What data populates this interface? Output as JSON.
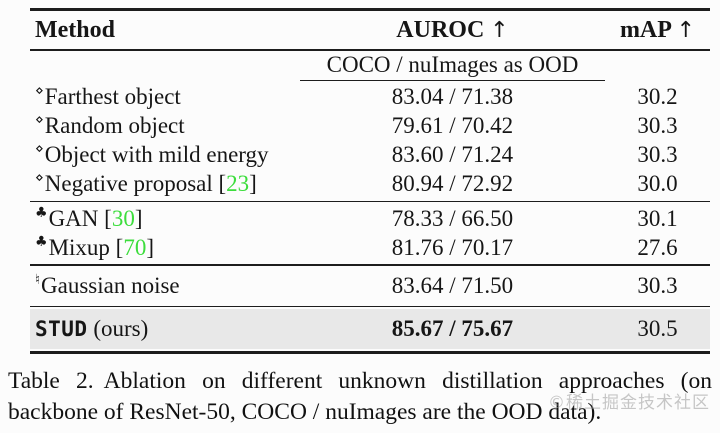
{
  "table": {
    "header": {
      "method": "Method",
      "auroc": "AUROC",
      "map": "mAP",
      "arrow": "↑"
    },
    "subheader": "COCO / nuImages as OOD",
    "rows": [
      {
        "marker": "⋄",
        "method": "Farthest object",
        "auroc": "83.04 / 71.38",
        "map": "30.2"
      },
      {
        "marker": "⋄",
        "method": "Random object",
        "auroc": "79.61 / 70.42",
        "map": "30.3"
      },
      {
        "marker": "⋄",
        "method": "Object with mild energy",
        "auroc": "83.60 / 71.24",
        "map": "30.3"
      },
      {
        "marker": "⋄",
        "method": "Negative proposal",
        "cite_open": " [",
        "citation": "23",
        "cite_close": "]",
        "auroc": "80.94 / 72.92",
        "map": "30.0"
      },
      {
        "marker": "♣",
        "method": "GAN",
        "cite_open": " [",
        "citation": "30",
        "cite_close": "]",
        "auroc": "78.33 / 66.50",
        "map": "30.1"
      },
      {
        "marker": "♣",
        "method": "Mixup",
        "cite_open": " [",
        "citation": "70",
        "cite_close": "]",
        "auroc": "81.76 / 70.17",
        "map": "27.6"
      },
      {
        "marker": "♮",
        "method": "Gaussian noise",
        "auroc": "83.64 / 71.50",
        "map": "30.3"
      }
    ],
    "stud_row": {
      "method_mono": "STUD",
      "method_rest": " (ours)",
      "auroc": "85.67 / 75.67",
      "map": "30.5"
    }
  },
  "caption": {
    "label": "Table 2.",
    "text": "Ablation on different unknown distillation approaches (on backbone of ResNet-50, COCO / nuImages are the OOD data)."
  },
  "watermark": {
    "text": "©稀土掘金技术社区"
  },
  "colors": {
    "citation_green": "#3cdd3c",
    "highlight_row": "#e8e8e8",
    "rule": "#1d1d1d",
    "background": "#fcfcfc"
  }
}
